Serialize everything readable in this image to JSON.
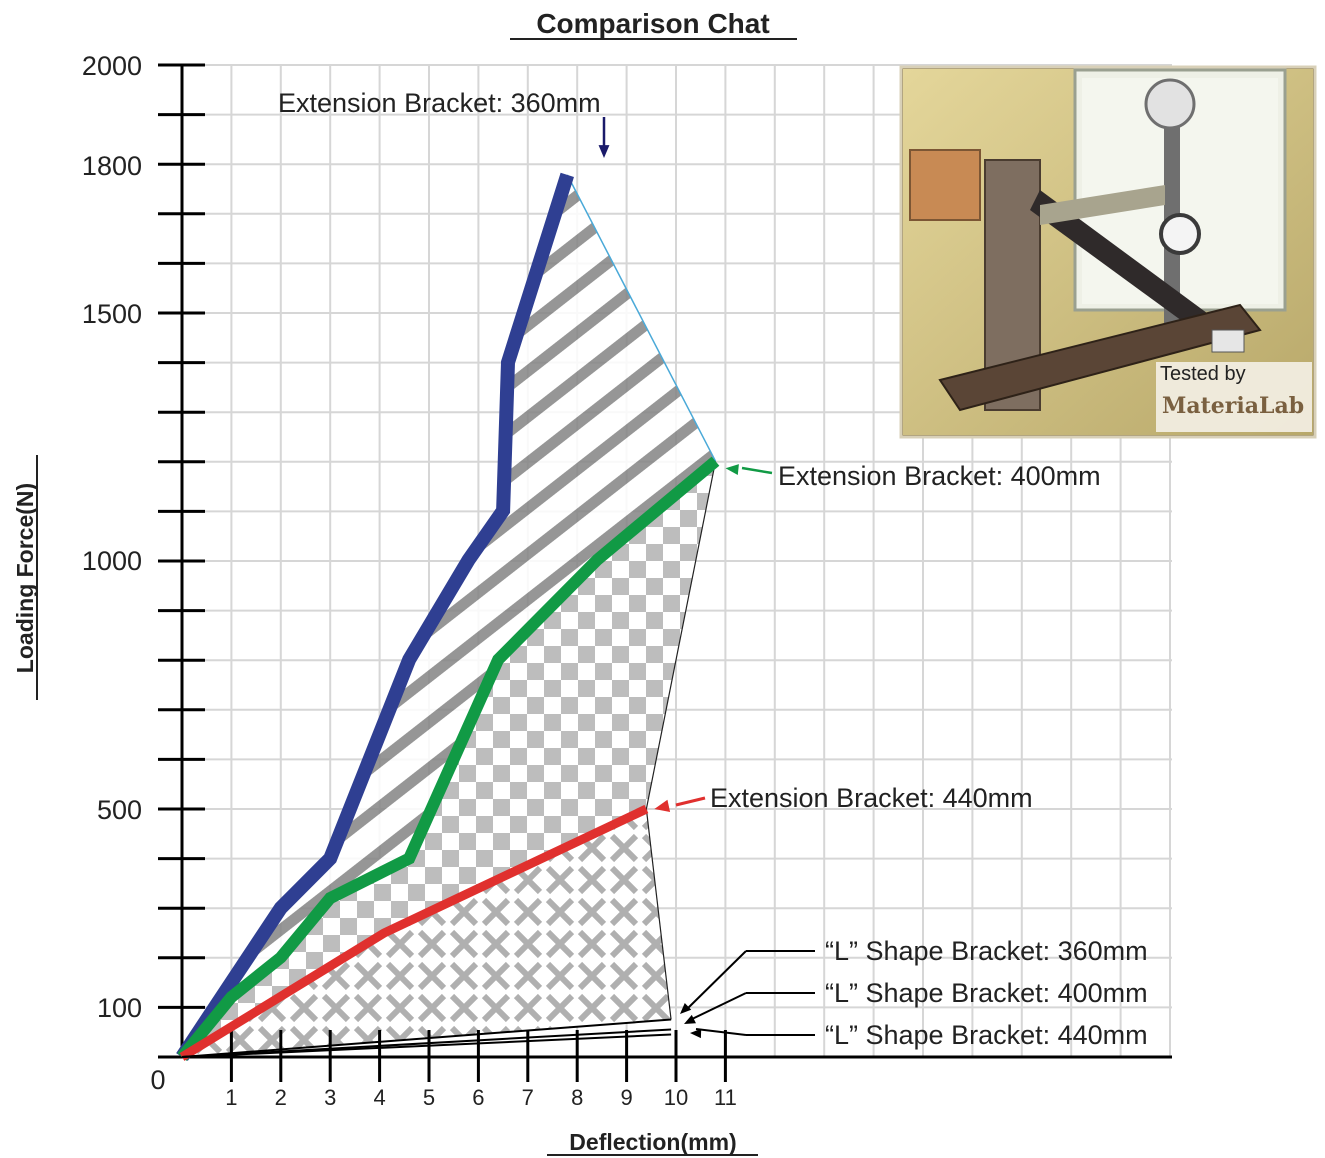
{
  "chart_data": {
    "type": "line",
    "title": "Comparison Chat",
    "xlabel": "Deflection(mm)",
    "ylabel": "Loading Force(N)",
    "xlim": [
      0,
      11
    ],
    "ylim": [
      0,
      2000
    ],
    "grid": true,
    "x_ticks": [
      "1",
      "2",
      "3",
      "4",
      "5",
      "6",
      "7",
      "8",
      "9",
      "10",
      "11"
    ],
    "y_ticks": [
      "0",
      "100",
      "500",
      "1000",
      "1500",
      "1800",
      "2000"
    ],
    "series": [
      {
        "name": "Extension Bracket: 360mm",
        "color": "#2f3f92",
        "x": [
          0,
          1,
          2,
          3,
          4.6,
          5.8,
          6.5,
          6.6,
          7.8
        ],
        "y": [
          0,
          150,
          300,
          400,
          800,
          1000,
          1100,
          1400,
          1780
        ]
      },
      {
        "name": "Extension Bracket: 400mm",
        "color": "#119a45",
        "x": [
          0,
          1,
          2,
          3,
          4.6,
          6.4,
          8.4,
          10.8
        ],
        "y": [
          0,
          120,
          200,
          320,
          400,
          800,
          1000,
          1200
        ]
      },
      {
        "name": "Extension Bracket: 440mm",
        "color": "#e0302e",
        "x": [
          0,
          4.1,
          9.4
        ],
        "y": [
          0,
          250,
          500
        ]
      },
      {
        "name": "“L” Shape Bracket: 360mm",
        "color": "#000000",
        "x": [
          0,
          9.9
        ],
        "y": [
          0,
          75
        ]
      },
      {
        "name": "“L” Shape Bracket: 400mm",
        "color": "#000000",
        "x": [
          0,
          9.9
        ],
        "y": [
          0,
          55
        ]
      },
      {
        "name": "“L” Shape Bracket: 440mm",
        "color": "#000000",
        "x": [
          0,
          9.9
        ],
        "y": [
          0,
          45
        ]
      }
    ]
  },
  "photo": {
    "caption": "Tested by",
    "brand": "MateriaLab"
  }
}
